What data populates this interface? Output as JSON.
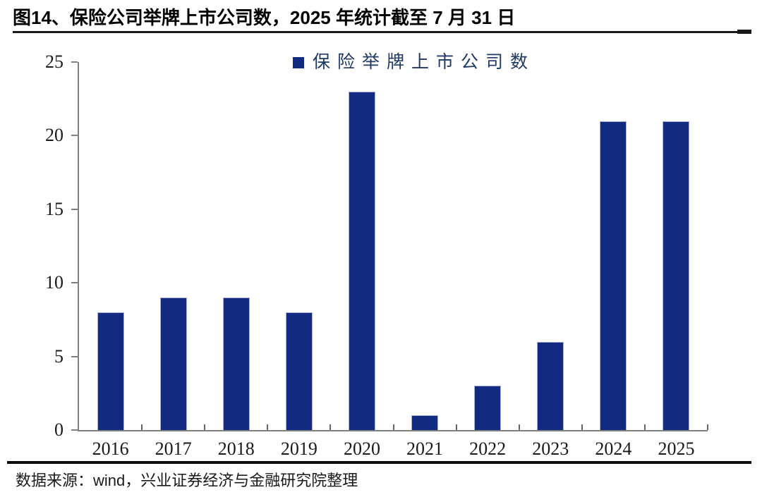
{
  "figure": {
    "title": "图14、保险公司举牌上市公司数，2025 年统计截至 7 月 31 日",
    "source_note": "数据来源：wind，兴业证券经济与金融研究院整理"
  },
  "legend": {
    "label": "保险举牌上市公司数",
    "swatch_color": "#122A80"
  },
  "chart_data": {
    "type": "bar",
    "title": "图14、保险公司举牌上市公司数，2025 年统计截至 7 月 31 日",
    "series_name": "保险举牌上市公司数",
    "categories": [
      "2016",
      "2017",
      "2018",
      "2019",
      "2020",
      "2021",
      "2022",
      "2023",
      "2024",
      "2025"
    ],
    "values": [
      8,
      9,
      9,
      8,
      23,
      1,
      3,
      6,
      21,
      21
    ],
    "xlabel": "",
    "ylabel": "",
    "ylim": [
      0,
      25
    ],
    "yticks": [
      0,
      5,
      10,
      15,
      20,
      25
    ],
    "grid": false,
    "legend_position": "top-center",
    "bar_color": "#122A80",
    "axis_color": "#7f7f7f"
  }
}
